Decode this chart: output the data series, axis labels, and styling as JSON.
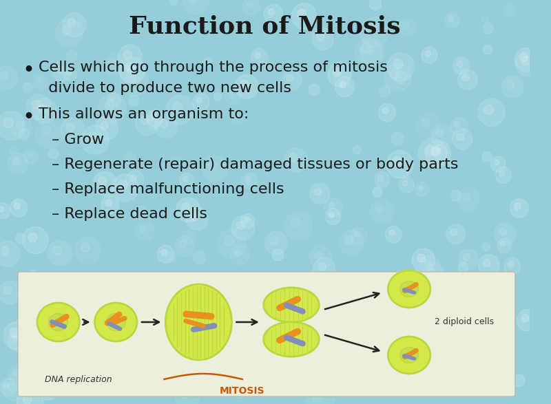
{
  "title": "Function of Mitosis",
  "title_fontsize": 26,
  "title_fontweight": "bold",
  "title_color": "#1a1a1a",
  "bg_color": "#95cdd8",
  "bullet1_line1": "Cells which go through the process of mitosis",
  "bullet1_line2": "  divide to produce two new cells",
  "bullet2": "This allows an organism to:",
  "sub_bullets": [
    "– Grow",
    "– Regenerate (repair) damaged tissues or body parts",
    "– Replace malfunctioning cells",
    "– Replace dead cells"
  ],
  "bullet_fontsize": 16,
  "sub_bullet_fontsize": 16,
  "text_color": "#1a1a1a",
  "diagram_bg": "#eeeedd",
  "diagram_label_dna": "DNA replication",
  "diagram_label_mitosis": "MITOSIS",
  "diagram_label_diploid": "2 diploid cells",
  "cell_yellow": "#d4e84a",
  "cell_green": "#b8d840",
  "spindle_color": "#7ab87a",
  "chrom_orange": "#e89020",
  "chrom_blue": "#8090b8",
  "mitosis_label_color": "#cc5500",
  "arrow_color": "#222222"
}
